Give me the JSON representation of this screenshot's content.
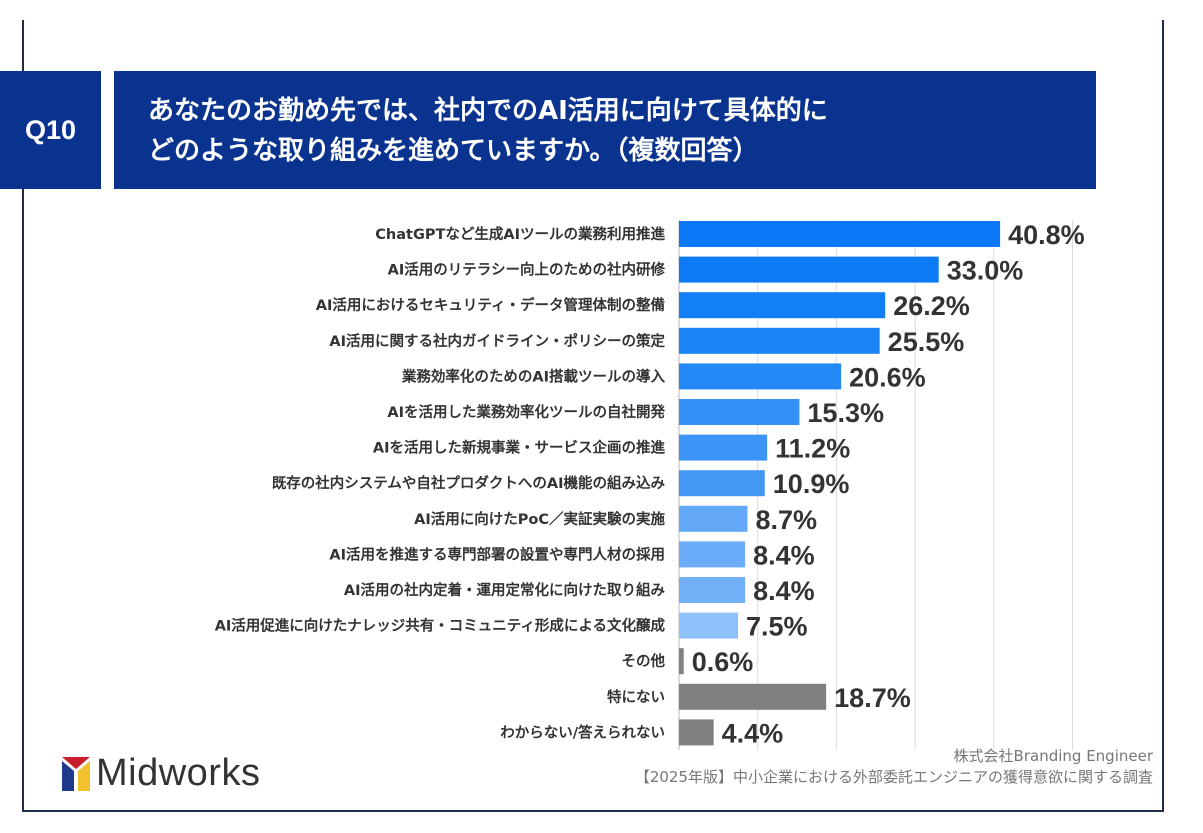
{
  "header": {
    "question_number": "Q10",
    "title_line1": "あなたのお勤め先では、社内でのAI活用に向けて具体的に",
    "title_line2": "どのような取り組みを進めていますか。（複数回答）",
    "colors": {
      "header_bg": "#0a3390",
      "header_text": "#ffffff"
    }
  },
  "chart_data": {
    "type": "bar",
    "orientation": "horizontal",
    "unit": "%",
    "xlim": [
      0,
      50
    ],
    "grid": true,
    "categories": [
      "ChatGPTなど生成AIツールの業務利用推進",
      "AI活用のリテラシー向上のための社内研修",
      "AI活用におけるセキュリティ・データ管理体制の整備",
      "AI活用に関する社内ガイドライン・ポリシーの策定",
      "業務効率化のためのAI搭載ツールの導入",
      "AIを活用した業務効率化ツールの自社開発",
      "AIを活用した新規事業・サービス企画の推進",
      "既存の社内システムや自社プロダクトへのAI機能の組み込み",
      "AI活用に向けたPoC／実証実験の実施",
      "AI活用を推進する専門部署の設置や専門人材の採用",
      "AI活用の社内定着・運用定常化に向けた取り組み",
      "AI活用促進に向けたナレッジ共有・コミュニティ形成による文化醸成",
      "その他",
      "特にない",
      "わからない/答えられない"
    ],
    "values": [
      40.8,
      33.0,
      26.2,
      25.5,
      20.6,
      15.3,
      11.2,
      10.9,
      8.7,
      8.4,
      8.4,
      7.5,
      0.6,
      18.7,
      4.4
    ],
    "value_labels": [
      "40.8%",
      "33.0%",
      "26.2%",
      "25.5%",
      "20.6%",
      "15.3%",
      "11.2%",
      "10.9%",
      "8.7%",
      "8.4%",
      "8.4%",
      "7.5%",
      "0.6%",
      "18.7%",
      "4.4%"
    ],
    "colors": [
      "#0a78f6",
      "#0d7bf6",
      "#137ff6",
      "#1a83f6",
      "#2488f6",
      "#3490f6",
      "#3c94f6",
      "#4398f6",
      "#63a9f7",
      "#6badf8",
      "#72b1f8",
      "#8ec1f9",
      "#808080",
      "#808080",
      "#808080"
    ]
  },
  "footer": {
    "logo_text": "Midworks",
    "credit_line1": "株式会社Branding Engineer",
    "credit_line2": "【2025年版】中小企業における外部委託エンジニアの獲得意欲に関する調査"
  }
}
